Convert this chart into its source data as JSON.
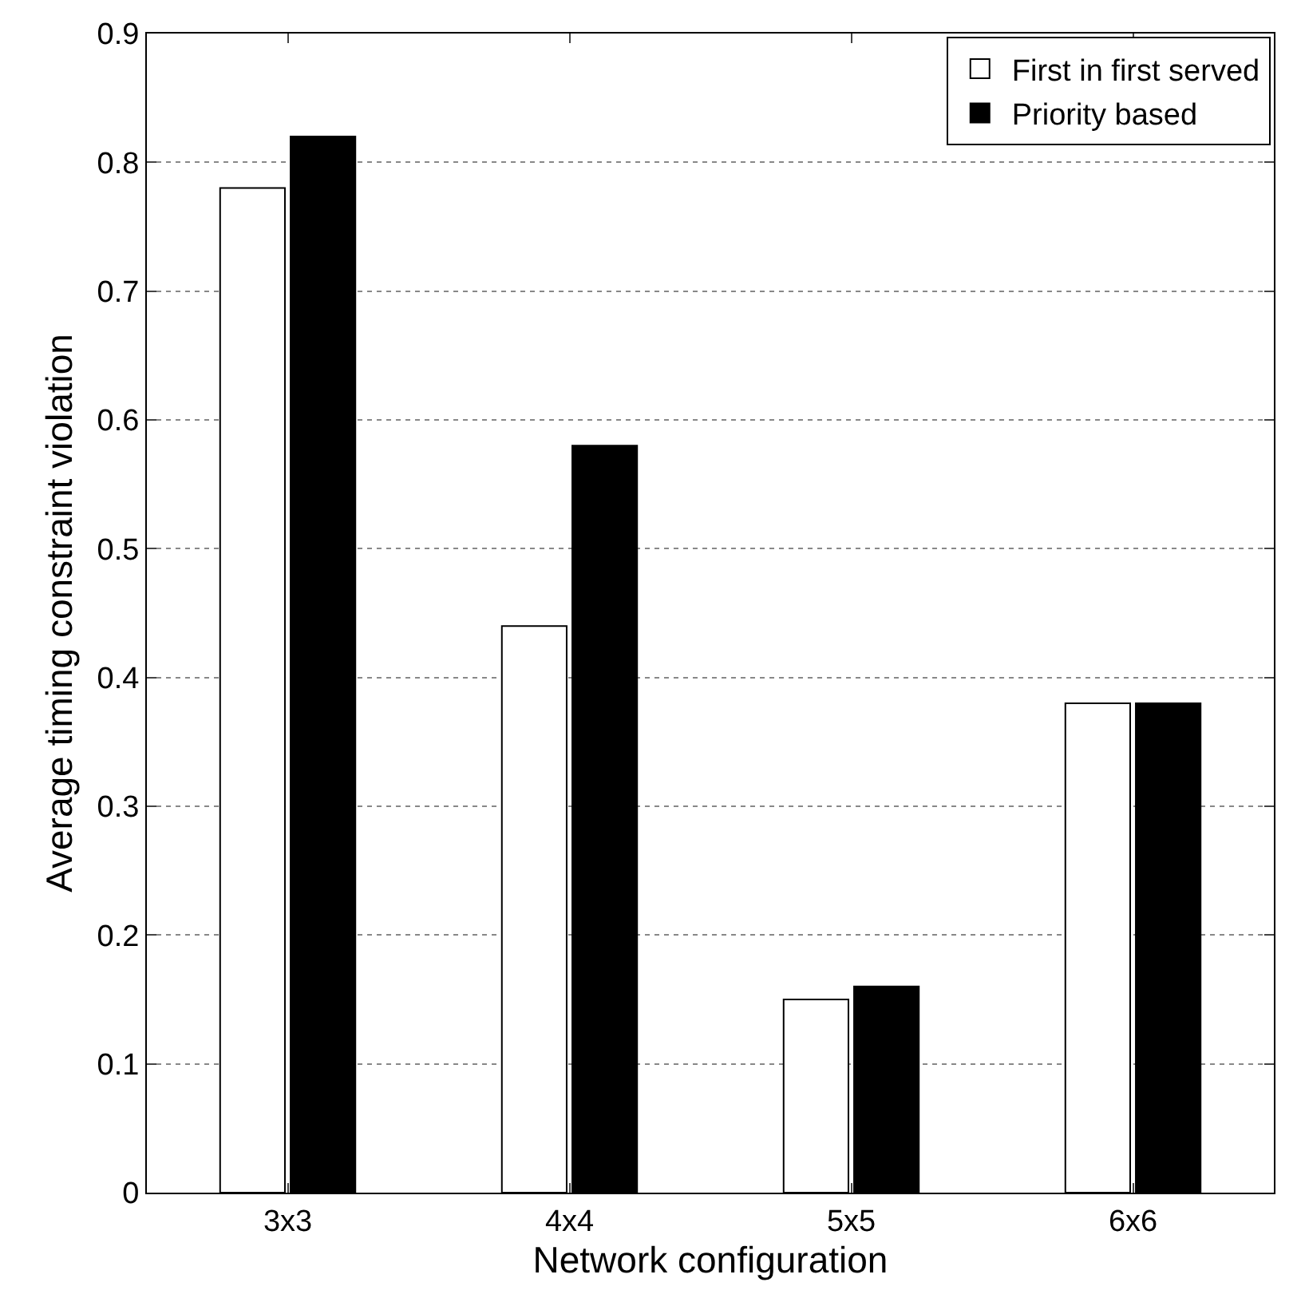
{
  "chart_data": {
    "type": "bar",
    "xlabel": "Network configuration",
    "ylabel": "Average timing constraint violation",
    "categories": [
      "3x3",
      "4x4",
      "5x5",
      "6x6"
    ],
    "series": [
      {
        "name": "First in first served",
        "color": "#ffffff",
        "values": [
          0.78,
          0.44,
          0.15,
          0.38
        ]
      },
      {
        "name": "Priority based",
        "color": "#000000",
        "values": [
          0.82,
          0.58,
          0.16,
          0.38
        ]
      }
    ],
    "ylim": [
      0,
      0.9
    ],
    "yticks": [
      0,
      0.1,
      0.2,
      0.3,
      0.4,
      0.5,
      0.6,
      0.7,
      0.8,
      0.9
    ],
    "grid": "y",
    "legend": "top right"
  }
}
